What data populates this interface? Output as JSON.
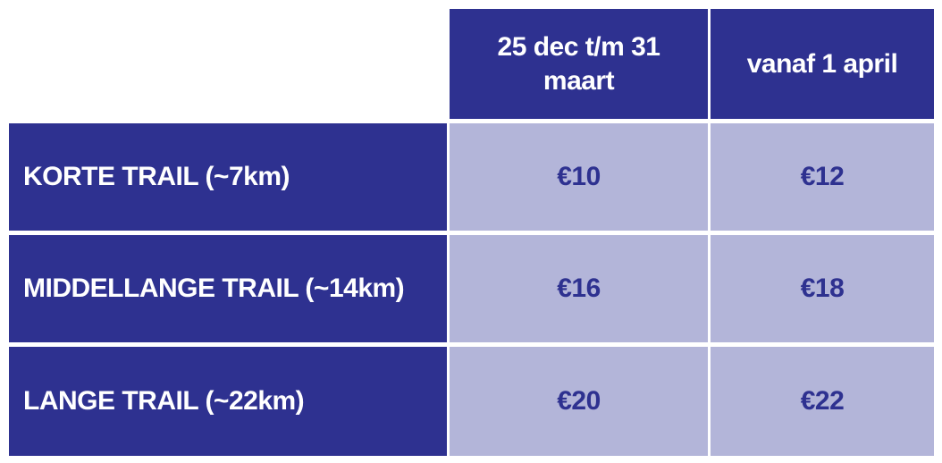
{
  "table": {
    "header": [
      "25 dec t/m 31 maart",
      "vanaf 1 april"
    ],
    "rows": [
      {
        "label": "KORTE TRAIL (~7km)",
        "prices": [
          "€10",
          "€12"
        ]
      },
      {
        "label": "MIDDELLANGE TRAIL (~14km)",
        "prices": [
          "€16",
          "€18"
        ]
      },
      {
        "label": "LANGE TRAIL (~22km)",
        "prices": [
          "€20",
          "€22"
        ]
      }
    ]
  }
}
